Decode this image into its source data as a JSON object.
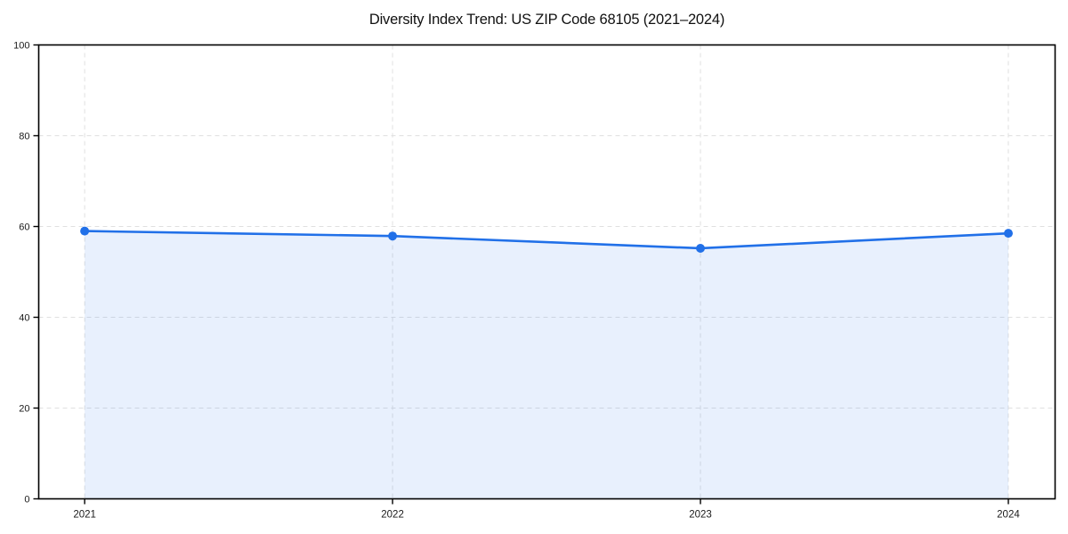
{
  "page": {
    "background": "#ffffff"
  },
  "chart_data": {
    "type": "area",
    "title": "Diversity Index Trend: US ZIP Code 68105 (2021–2024)",
    "x": [
      "2021",
      "2022",
      "2023",
      "2024"
    ],
    "series": [
      {
        "name": "Diversity Index",
        "values": [
          59,
          57.9,
          55.2,
          58.5
        ]
      }
    ],
    "xlabel": "",
    "ylabel": "",
    "ylim": [
      0,
      100
    ],
    "yticks": [
      0,
      20,
      40,
      60,
      80,
      100
    ],
    "grid": "dashed",
    "legend": "none",
    "marker": "circle",
    "colors": {
      "line": "#2170e8",
      "fill": "rgba(33,112,232,0.10)",
      "grid": "#e0e0e0",
      "axis": "#000000",
      "tick_label": "#1a1a1a",
      "title": "#111111"
    }
  }
}
